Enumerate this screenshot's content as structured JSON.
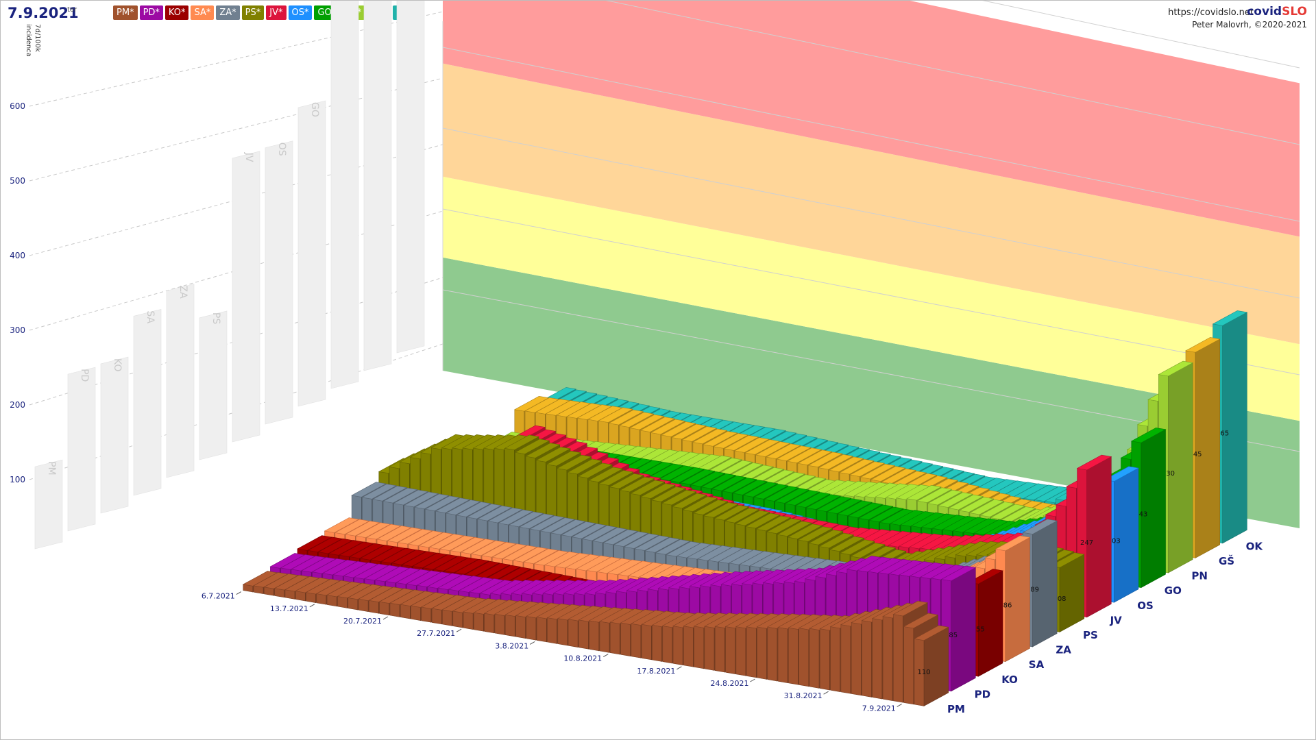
{
  "header": {
    "date": "7.9.2021",
    "weekday": "tor",
    "view_button": "3D",
    "url": "https://covidslo.net",
    "brand_a": "covid",
    "brand_b": "SLO",
    "author": "Peter Malovrh, ©2020-2021"
  },
  "region_buttons": [
    {
      "label": "PM*",
      "color": "#a0522d"
    },
    {
      "label": "PD*",
      "color": "#9c0aa3"
    },
    {
      "label": "KO*",
      "color": "#9b0000"
    },
    {
      "label": "SA*",
      "color": "#ff8a50"
    },
    {
      "label": "ZA*",
      "color": "#708090"
    },
    {
      "label": "PS*",
      "color": "#808000"
    },
    {
      "label": "JV*",
      "color": "#dc143c"
    },
    {
      "label": "OS*",
      "color": "#1e90ff"
    },
    {
      "label": "GO*",
      "color": "#00a000"
    },
    {
      "label": "PN*",
      "color": "#9acd32"
    },
    {
      "label": "GŠ*",
      "color": "#daa520"
    },
    {
      "label": "OK*",
      "color": "#20b2aa"
    }
  ],
  "chart_data": {
    "type": "bar",
    "ylabel_line1": "7d/100k",
    "ylabel_line2": "incidenca",
    "y_ticks": [
      100,
      200,
      300,
      400,
      500,
      600
    ],
    "ylim": [
      0,
      700
    ],
    "x_tick_labels": [
      "6.7.2021",
      "13.7.2021",
      "20.7.2021",
      "27.7.2021",
      "3.8.2021",
      "10.8.2021",
      "17.8.2021",
      "24.8.2021",
      "31.8.2021",
      "7.9.2021"
    ],
    "threshold_bands": [
      {
        "from": 0,
        "to": 140,
        "color": "#8fca8f"
      },
      {
        "from": 140,
        "to": 240,
        "color": "#ffff99"
      },
      {
        "from": 240,
        "to": 380,
        "color": "#ffd699"
      },
      {
        "from": 380,
        "to": 580,
        "color": "#ff9c9c"
      }
    ],
    "back_wall_heights": [
      110,
      210,
      200,
      240,
      250,
      190,
      380,
      370,
      400,
      530,
      540,
      570
    ],
    "series": [
      {
        "name": "PM",
        "color": "#a0522d",
        "last_label": "110",
        "anchors": [
          [
            0,
            10
          ],
          [
            20,
            25
          ],
          [
            40,
            60
          ],
          [
            50,
            88
          ],
          [
            55,
            100
          ],
          [
            62,
            145
          ],
          [
            64,
            110
          ]
        ]
      },
      {
        "name": "PD",
        "color": "#9c0aa3",
        "last_label": "185",
        "anchors": [
          [
            0,
            15
          ],
          [
            20,
            30
          ],
          [
            30,
            60
          ],
          [
            42,
            110
          ],
          [
            50,
            140
          ],
          [
            55,
            175
          ],
          [
            64,
            185
          ]
        ]
      },
      {
        "name": "KO",
        "color": "#9b0000",
        "last_label": "155",
        "anchors": [
          [
            0,
            20
          ],
          [
            15,
            25
          ],
          [
            30,
            20
          ],
          [
            45,
            30
          ],
          [
            55,
            55
          ],
          [
            60,
            105
          ],
          [
            64,
            155
          ]
        ]
      },
      {
        "name": "SA",
        "color": "#ff8a50",
        "last_label": "186",
        "anchors": [
          [
            0,
            25
          ],
          [
            20,
            30
          ],
          [
            40,
            45
          ],
          [
            50,
            70
          ],
          [
            58,
            110
          ],
          [
            62,
            150
          ],
          [
            64,
            186
          ]
        ]
      },
      {
        "name": "ZA",
        "color": "#708090",
        "last_label": "189",
        "anchors": [
          [
            0,
            60
          ],
          [
            15,
            55
          ],
          [
            30,
            50
          ],
          [
            45,
            60
          ],
          [
            55,
            85
          ],
          [
            60,
            125
          ],
          [
            64,
            189
          ]
        ]
      },
      {
        "name": "PS",
        "color": "#808000",
        "last_label": "108",
        "anchors": [
          [
            0,
            75
          ],
          [
            5,
            130
          ],
          [
            12,
            150
          ],
          [
            20,
            120
          ],
          [
            30,
            95
          ],
          [
            40,
            80
          ],
          [
            48,
            60
          ],
          [
            55,
            100
          ],
          [
            60,
            115
          ],
          [
            64,
            108
          ]
        ]
      },
      {
        "name": "JV",
        "color": "#dc143c",
        "last_label": "247",
        "anchors": [
          [
            0,
            40
          ],
          [
            5,
            60
          ],
          [
            10,
            135
          ],
          [
            14,
            120
          ],
          [
            20,
            85
          ],
          [
            30,
            60
          ],
          [
            40,
            55
          ],
          [
            50,
            70
          ],
          [
            58,
            100
          ],
          [
            62,
            180
          ],
          [
            64,
            247
          ]
        ]
      },
      {
        "name": "OS",
        "color": "#1e90ff",
        "last_label": "203",
        "anchors": [
          [
            0,
            20
          ],
          [
            5,
            10
          ],
          [
            10,
            5
          ],
          [
            20,
            35
          ],
          [
            30,
            30
          ],
          [
            40,
            15
          ],
          [
            48,
            25
          ],
          [
            55,
            85
          ],
          [
            60,
            130
          ],
          [
            64,
            203
          ]
        ]
      },
      {
        "name": "GO",
        "color": "#00a000",
        "last_label": "243",
        "anchors": [
          [
            0,
            10
          ],
          [
            10,
            45
          ],
          [
            20,
            45
          ],
          [
            30,
            40
          ],
          [
            40,
            35
          ],
          [
            50,
            45
          ],
          [
            57,
            80
          ],
          [
            61,
            150
          ],
          [
            64,
            243
          ]
        ]
      },
      {
        "name": "PN",
        "color": "#9acd32",
        "last_label": "330",
        "anchors": [
          [
            0,
            20
          ],
          [
            10,
            30
          ],
          [
            20,
            40
          ],
          [
            30,
            30
          ],
          [
            40,
            50
          ],
          [
            50,
            40
          ],
          [
            56,
            80
          ],
          [
            60,
            150
          ],
          [
            64,
            330
          ]
        ]
      },
      {
        "name": "GŠ",
        "color": "#daa520",
        "last_label": "345",
        "anchors": [
          [
            0,
            55
          ],
          [
            8,
            60
          ],
          [
            18,
            50
          ],
          [
            28,
            45
          ],
          [
            38,
            35
          ],
          [
            46,
            20
          ],
          [
            52,
            20
          ],
          [
            57,
            60
          ],
          [
            61,
            200
          ],
          [
            64,
            345
          ]
        ]
      },
      {
        "name": "OK",
        "color": "#20b2aa",
        "last_label": "365",
        "anchors": [
          [
            0,
            45
          ],
          [
            10,
            35
          ],
          [
            20,
            35
          ],
          [
            30,
            25
          ],
          [
            40,
            15
          ],
          [
            48,
            20
          ],
          [
            54,
            60
          ],
          [
            58,
            120
          ],
          [
            62,
            290
          ],
          [
            64,
            365
          ]
        ]
      }
    ]
  }
}
